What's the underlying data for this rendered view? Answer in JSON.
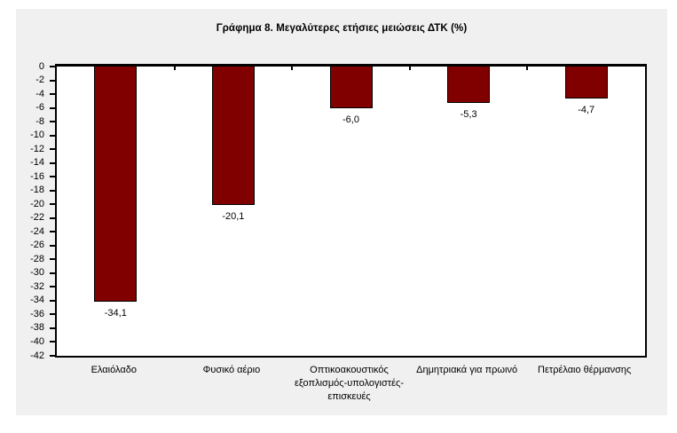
{
  "title": "Γράφημα 8. Μεγαλύτερες ετήσιες μειώσεις ΔΤΚ (%)",
  "colors": {
    "bar_fill": "#800000",
    "bar_border": "#000000",
    "panel_bg": "#f0f0f0",
    "plot_bg": "#ffffff",
    "axis": "#000000"
  },
  "chart_data": {
    "type": "bar",
    "title": "Γράφημα 8. Μεγαλύτερες ετήσιες μειώσεις ΔΤΚ (%)",
    "categories": [
      "Ελαιόλαδο",
      "Φυσικό αέριο",
      "Οπτικοακουστικός εξοπλισμός-υπολογιστές-επισκευές",
      "Δημητριακά για πρωινό",
      "Πετρέλαιο θέρμανσης"
    ],
    "values": [
      -34.1,
      -20.1,
      -6.0,
      -5.3,
      -4.7
    ],
    "data_labels": [
      "-34,1",
      "-20,1",
      "-6,0",
      "-5,3",
      "-4,7"
    ],
    "xlabel": "",
    "ylabel": "",
    "ylim": [
      -42,
      0
    ],
    "ytick_step": 2,
    "ytick_labels": [
      "0",
      "-2",
      "-4",
      "-6",
      "-8",
      "-10",
      "-12",
      "-14",
      "-16",
      "-18",
      "-20",
      "-22",
      "-24",
      "-26",
      "-28",
      "-30",
      "-32",
      "-34",
      "-36",
      "-38",
      "-40",
      "-42"
    ],
    "grid": false,
    "legend": false,
    "bar_orientation": "vertical-negative"
  }
}
